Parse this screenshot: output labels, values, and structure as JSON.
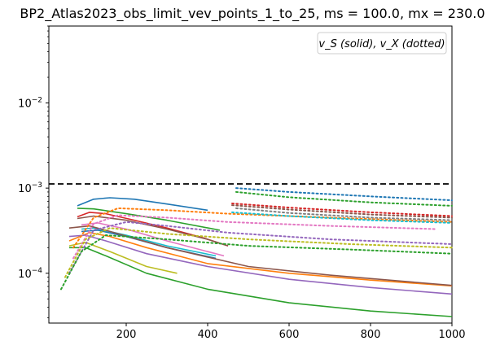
{
  "chart_data": {
    "type": "line",
    "title": "BP2_Atlas2023_obs_limit_vev_points_1_to_25, ms = 100.0, mx = 230.0",
    "xlabel": "",
    "ylabel": "",
    "xscale": "linear",
    "yscale": "log",
    "xlim": [
      10,
      1000
    ],
    "ylim": [
      2.6e-05,
      0.08
    ],
    "grid": false,
    "legend": {
      "text": "v_S (solid), v_X (dotted)",
      "placement": "top-right"
    },
    "x_ticks": [
      {
        "value": 200,
        "label": "200"
      },
      {
        "value": 400,
        "label": "400"
      },
      {
        "value": 600,
        "label": "600"
      },
      {
        "value": 800,
        "label": "800"
      },
      {
        "value": 1000,
        "label": "1000"
      }
    ],
    "y_ticks": [
      {
        "value": 0.0001,
        "base": "10",
        "exp": "−4"
      },
      {
        "value": 0.001,
        "base": "10",
        "exp": "−3"
      },
      {
        "value": 0.01,
        "base": "10",
        "exp": "−2"
      }
    ],
    "reference_line": {
      "y": 0.00112,
      "style": "dashed",
      "color": "#000000"
    },
    "series": [
      {
        "color": "#1f77b4",
        "style": "solid",
        "x": [
          80,
          120,
          160,
          220,
          300,
          400
        ],
        "y": [
          0.00062,
          0.00074,
          0.00077,
          0.00074,
          0.00065,
          0.00055
        ]
      },
      {
        "color": "#2ca02c",
        "style": "solid",
        "x": [
          80,
          120,
          200,
          300,
          430
        ],
        "y": [
          0.00058,
          0.00057,
          0.0005,
          0.00042,
          0.00032
        ]
      },
      {
        "color": "#d62728",
        "style": "solid",
        "x": [
          80,
          110,
          150,
          220,
          300,
          390,
          450
        ],
        "y": [
          0.00046,
          0.00052,
          0.0005,
          0.00042,
          0.00034,
          0.00026,
          0.00021
        ]
      },
      {
        "color": "#8c564b",
        "style": "solid",
        "x": [
          80,
          120,
          200,
          300,
          400,
          450
        ],
        "y": [
          0.00044,
          0.00047,
          0.00042,
          0.00033,
          0.00025,
          0.00021
        ]
      },
      {
        "color": "#e377c2",
        "style": "solid",
        "x": [
          90,
          130,
          200,
          300,
          440
        ],
        "y": [
          0.00037,
          0.00039,
          0.00033,
          0.00024,
          0.00016
        ]
      },
      {
        "color": "#17becf",
        "style": "solid",
        "x": [
          90,
          120,
          200,
          300,
          420
        ],
        "y": [
          0.00033,
          0.00034,
          0.00028,
          0.00021,
          0.00016
        ]
      },
      {
        "color": "#1f77b4",
        "style": "solid",
        "x": [
          90,
          130,
          200,
          300,
          420
        ],
        "y": [
          0.00031,
          0.00032,
          0.00027,
          0.0002,
          0.00015
        ]
      },
      {
        "color": "#ff7f0e",
        "style": "solid",
        "x": [
          60,
          110,
          160,
          250,
          400,
          600,
          800,
          1000
        ],
        "y": [
          0.00024,
          0.0003,
          0.00027,
          0.0002,
          0.00013,
          0.0001,
          8.3e-05,
          7.1e-05
        ]
      },
      {
        "color": "#9467bd",
        "style": "solid",
        "x": [
          60,
          100,
          150,
          250,
          400,
          600,
          800,
          1000
        ],
        "y": [
          0.00027,
          0.00028,
          0.00024,
          0.00017,
          0.00012,
          8.5e-05,
          6.8e-05,
          5.7e-05
        ]
      },
      {
        "color": "#bcbd22",
        "style": "solid",
        "x": [
          60,
          100,
          160,
          250,
          325
        ],
        "y": [
          0.00021,
          0.00023,
          0.00018,
          0.00012,
          0.0001
        ]
      },
      {
        "color": "#2ca02c",
        "style": "solid",
        "x": [
          60,
          100,
          150,
          250,
          400,
          600,
          800,
          1000
        ],
        "y": [
          0.0002,
          0.0002,
          0.00016,
          0.0001,
          6.5e-05,
          4.5e-05,
          3.6e-05,
          3.1e-05
        ]
      },
      {
        "color": "#8c564b",
        "style": "solid",
        "x": [
          60,
          110,
          160,
          300,
          500,
          700,
          1000
        ],
        "y": [
          0.00034,
          0.00036,
          0.00031,
          0.0002,
          0.00012,
          9.5e-05,
          7.2e-05
        ]
      },
      {
        "color": "#1f77b4",
        "style": "dotted",
        "x": [
          470,
          600,
          800,
          1000
        ],
        "y": [
          0.001,
          0.0009,
          0.0008,
          0.00072
        ]
      },
      {
        "color": "#2ca02c",
        "style": "dotted",
        "x": [
          470,
          600,
          800,
          1000
        ],
        "y": [
          0.0009,
          0.00078,
          0.00068,
          0.00062
        ]
      },
      {
        "color": "#d62728",
        "style": "dotted",
        "x": [
          460,
          600,
          800,
          1000
        ],
        "y": [
          0.00066,
          0.00059,
          0.00052,
          0.00047
        ]
      },
      {
        "color": "#8c564b",
        "style": "dotted",
        "x": [
          460,
          600,
          800,
          1000
        ],
        "y": [
          0.00063,
          0.00056,
          0.00049,
          0.00045
        ]
      },
      {
        "color": "#ff7f0e",
        "style": "dotted",
        "x": [
          70,
          120,
          180,
          300,
          450,
          700,
          1000
        ],
        "y": [
          0.0002,
          0.00045,
          0.00058,
          0.00055,
          0.0005,
          0.00045,
          0.0004
        ]
      },
      {
        "color": "#17becf",
        "style": "dotted",
        "x": [
          460,
          600,
          800,
          1000
        ],
        "y": [
          0.00052,
          0.00047,
          0.00042,
          0.00039
        ]
      },
      {
        "color": "#e377c2",
        "style": "dotted",
        "x": [
          70,
          120,
          180,
          300,
          450,
          700,
          960
        ],
        "y": [
          0.00015,
          0.00038,
          0.00048,
          0.00045,
          0.0004,
          0.00036,
          0.00033
        ]
      },
      {
        "color": "#9467bd",
        "style": "dotted",
        "x": [
          60,
          120,
          200,
          300,
          450,
          700,
          1000
        ],
        "y": [
          0.0001,
          0.00032,
          0.0004,
          0.00036,
          0.0003,
          0.00025,
          0.00022
        ]
      },
      {
        "color": "#bcbd22",
        "style": "dotted",
        "x": [
          50,
          100,
          160,
          300,
          500,
          750,
          1000
        ],
        "y": [
          9e-05,
          0.00025,
          0.00034,
          0.00029,
          0.00025,
          0.00022,
          0.0002
        ]
      },
      {
        "color": "#2ca02c",
        "style": "dotted",
        "x": [
          40,
          90,
          150,
          300,
          500,
          750,
          1000
        ],
        "y": [
          6.5e-05,
          0.00018,
          0.00028,
          0.00025,
          0.00021,
          0.00019,
          0.00017
        ]
      },
      {
        "color": "#7f7f7f",
        "style": "dotted",
        "x": [
          470,
          600,
          800,
          1000
        ],
        "y": [
          0.00058,
          0.00051,
          0.00045,
          0.00042
        ]
      }
    ]
  }
}
